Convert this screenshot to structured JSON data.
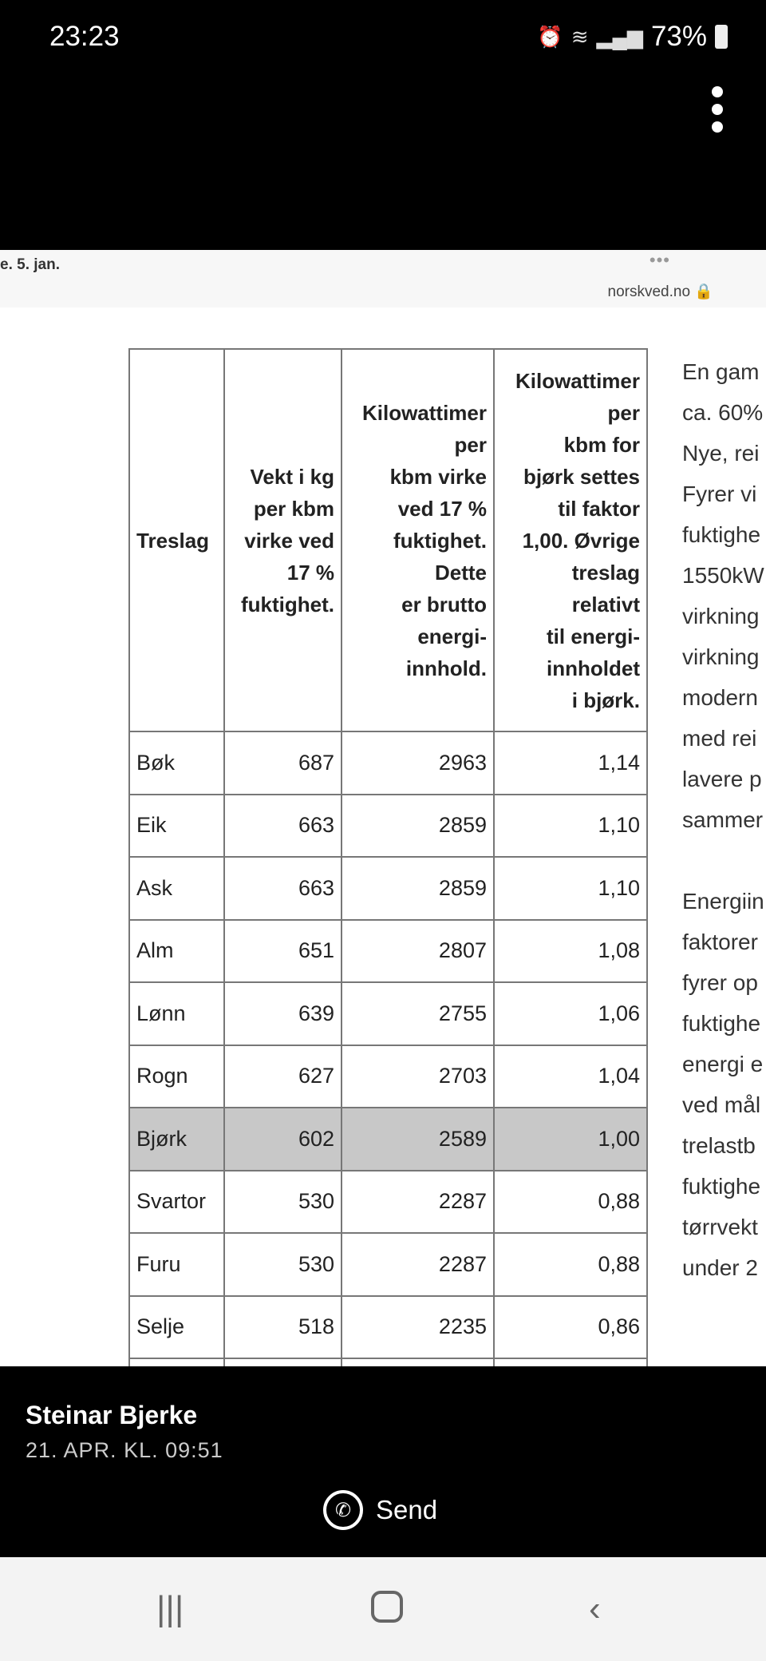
{
  "status": {
    "time": "23:23",
    "battery": "73%",
    "icons": [
      "alarm-icon",
      "wifi-icon",
      "signal-icon",
      "battery-icon"
    ]
  },
  "browser": {
    "date": "e. 5. jan.",
    "menu": "•••",
    "url": "norskved.no"
  },
  "table": {
    "headers": [
      [
        "Treslag"
      ],
      [
        "Vekt i kg",
        "per kbm",
        "virke ved",
        "17 %",
        "fuktighet."
      ],
      [
        "Kilowattimer",
        "per",
        "kbm virke",
        "ved 17 %",
        "fuktighet.",
        "Dette",
        "er brutto",
        "energi-",
        "innhold."
      ],
      [
        "Kilowattimer",
        "per",
        "kbm for",
        "bjørk settes",
        "til faktor",
        "1,00. Øvrige",
        "treslag",
        "relativt",
        "til energi-",
        "innholdet",
        "i bjørk."
      ]
    ],
    "rows": [
      [
        "Bøk",
        "687",
        "2963",
        "1,14"
      ],
      [
        "Eik",
        "663",
        "2859",
        "1,10"
      ],
      [
        "Ask",
        "663",
        "2859",
        "1,10"
      ],
      [
        "Alm",
        "651",
        "2807",
        "1,08"
      ],
      [
        "Lønn",
        "639",
        "2755",
        "1,06"
      ],
      [
        "Rogn",
        "627",
        "2703",
        "1,04"
      ],
      [
        "Bjørk",
        "602",
        "2589",
        "1,00"
      ],
      [
        "Svartor",
        "530",
        "2287",
        "0,88"
      ],
      [
        "Furu",
        "530",
        "2287",
        "0,88"
      ],
      [
        "Selje",
        "518",
        "2235",
        "0,86"
      ]
    ],
    "highlight_row": "Bjørk",
    "highlight_color": "#c8c8c8"
  },
  "side_text": {
    "p1": [
      "En gam",
      "ca. 60%",
      "Nye, rei",
      "Fyrer vi",
      "fuktighe",
      "1550kW",
      "virkning",
      "virkning",
      "modern",
      "med rei",
      "lavere p",
      "sammer"
    ],
    "p2": [
      "Energiin",
      "faktorer",
      "fyrer op",
      "fuktighe",
      "energi e",
      "ved mål",
      "trelastb",
      "fuktighe",
      "tørrvekt",
      "under 2"
    ]
  },
  "footer": {
    "author": "Steinar Bjerke",
    "date": "21. APR. KL. 09:51",
    "send": "Send"
  },
  "nav": {
    "recent": "|||",
    "back": "‹"
  }
}
